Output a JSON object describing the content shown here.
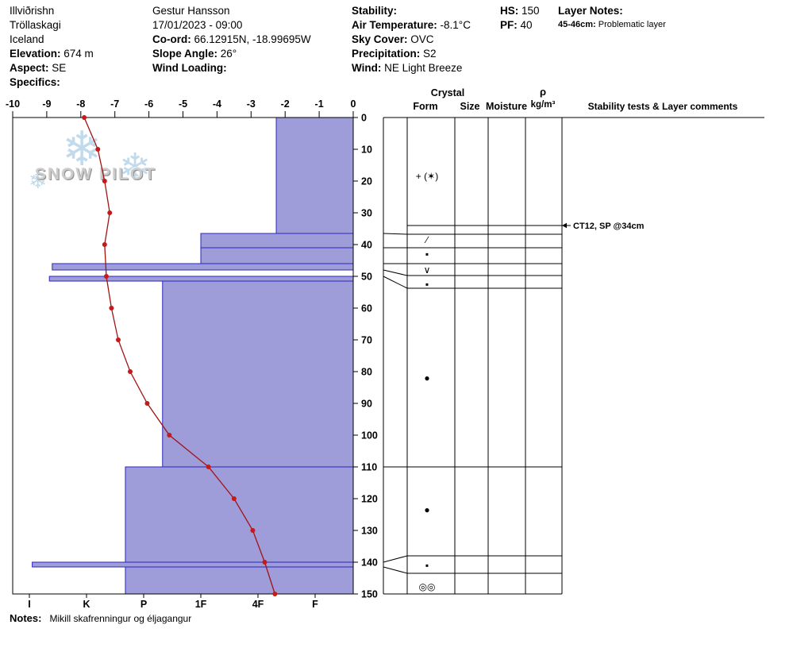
{
  "header": {
    "location": {
      "lines": [
        {
          "text": "Illviðrishn"
        },
        {
          "text": "Tröllaskagi"
        },
        {
          "text": "Iceland"
        },
        {
          "label": "Elevation:",
          "value": "674 m"
        },
        {
          "label": "Aspect:",
          "value": "SE"
        },
        {
          "label": "Specifics:",
          "value": ""
        }
      ]
    },
    "observer": {
      "lines": [
        {
          "text": "Gestur Hansson"
        },
        {
          "text": "17/01/2023 - 09:00"
        },
        {
          "label": "Co-ord:",
          "value": "66.12915N, -18.99695W"
        },
        {
          "label": "Slope Angle:",
          "value": "26°"
        },
        {
          "label": "Wind Loading:",
          "value": ""
        }
      ]
    },
    "conditions": {
      "lines": [
        {
          "label": "Stability:",
          "value": ""
        },
        {
          "label": "Air Temperature:",
          "value": "-8.1°C"
        },
        {
          "label": "Sky Cover:",
          "value": "OVC"
        },
        {
          "label": "Precipitation:",
          "value": "S2"
        },
        {
          "label": "Wind:",
          "value": "NE Light Breeze"
        }
      ]
    },
    "snowpack": {
      "lines": [
        {
          "label": "HS:",
          "value": "150"
        },
        {
          "label": "PF:",
          "value": "40"
        }
      ]
    },
    "layer_notes": {
      "lines": [
        {
          "label": "Layer Notes:",
          "value": ""
        },
        {
          "label": "45-46cm:",
          "value": "Problematic layer",
          "small": true
        }
      ]
    }
  },
  "watermark": {
    "text": "SNOW PILOT",
    "snowflake_glyph": "❄"
  },
  "chart_data": {
    "type": "snow-profile",
    "temperature_axis": {
      "unit": "°C",
      "range": [
        -10,
        0
      ],
      "ticks": [
        -10,
        -9,
        -8,
        -7,
        -6,
        -5,
        -4,
        -3,
        -2,
        -1,
        0
      ]
    },
    "depth_axis": {
      "unit": "cm",
      "range": [
        0,
        150
      ],
      "ticks": [
        0,
        10,
        20,
        30,
        40,
        50,
        60,
        70,
        80,
        90,
        100,
        110,
        120,
        130,
        140,
        150
      ]
    },
    "hardness_axis": {
      "labels": [
        "I",
        "K",
        "P",
        "1F",
        "4F",
        "F"
      ]
    },
    "layers": [
      {
        "top_cm": 0,
        "bottom_cm": 36.5,
        "hardness": "4F-F",
        "h": 4.32
      },
      {
        "top_cm": 36.5,
        "bottom_cm": 41,
        "hardness": "1F",
        "h": 3.0
      },
      {
        "top_cm": 41,
        "bottom_cm": 46,
        "hardness": "1F",
        "h": 3.0
      },
      {
        "top_cm": 46,
        "bottom_cm": 48,
        "hardness": "K",
        "h": 0.4
      },
      {
        "top_cm": 48,
        "bottom_cm": 50,
        "hardness": "F",
        "h": null
      },
      {
        "top_cm": 50,
        "bottom_cm": 51.5,
        "hardness": "K",
        "h": 0.35
      },
      {
        "top_cm": 51.5,
        "bottom_cm": 110,
        "hardness": "P",
        "h": 2.33
      },
      {
        "top_cm": 110,
        "bottom_cm": 140,
        "hardness": "P-",
        "h": 1.68
      },
      {
        "top_cm": 140,
        "bottom_cm": 141.5,
        "hardness": "I",
        "h": 0.05
      },
      {
        "top_cm": 141.5,
        "bottom_cm": 150,
        "hardness": "P-",
        "h": 1.68
      }
    ],
    "temperature_profile": [
      {
        "depth_cm": 0,
        "temp_c": -7.9
      },
      {
        "depth_cm": 10,
        "temp_c": -7.5
      },
      {
        "depth_cm": 20,
        "temp_c": -7.3
      },
      {
        "depth_cm": 30,
        "temp_c": -7.15
      },
      {
        "depth_cm": 40,
        "temp_c": -7.3
      },
      {
        "depth_cm": 50,
        "temp_c": -7.25
      },
      {
        "depth_cm": 60,
        "temp_c": -7.1
      },
      {
        "depth_cm": 70,
        "temp_c": -6.9
      },
      {
        "depth_cm": 80,
        "temp_c": -6.55
      },
      {
        "depth_cm": 90,
        "temp_c": -6.05
      },
      {
        "depth_cm": 100,
        "temp_c": -5.4
      },
      {
        "depth_cm": 110,
        "temp_c": -4.25
      },
      {
        "depth_cm": 120,
        "temp_c": -3.5
      },
      {
        "depth_cm": 130,
        "temp_c": -2.95
      },
      {
        "depth_cm": 140,
        "temp_c": -2.6
      },
      {
        "depth_cm": 150,
        "temp_c": -2.3
      }
    ],
    "colors": {
      "layer_fill": "#9e9dd9",
      "layer_border": "#2a28bc",
      "profile_line": "#a01414",
      "profile_point": "#c41a1a"
    }
  },
  "panel": {
    "headers": {
      "crystal": "Crystal",
      "form": "Form",
      "size": "Size",
      "moisture": "Moisture",
      "density_symbol": "ρ",
      "density_unit": "kg/m³",
      "comments": "Stability tests & Layer comments"
    },
    "boundaries": [
      {
        "chart_cm": 36.5,
        "panel_cm": 36.75
      },
      {
        "chart_cm": 41,
        "panel_cm": 41
      },
      {
        "chart_cm": 46,
        "panel_cm": 46
      },
      {
        "chart_cm": 48,
        "panel_cm": 49.75
      },
      {
        "chart_cm": 50,
        "panel_cm": 53.75
      },
      {
        "chart_cm": 110,
        "panel_cm": 110
      },
      {
        "chart_cm": 140,
        "panel_cm": 138
      },
      {
        "chart_cm": 141.5,
        "panel_cm": 143.5
      }
    ],
    "forms": [
      {
        "depth_cm": 18.5,
        "symbol": "+ (✶)",
        "name": "precipitation-particles"
      },
      {
        "depth_cm": 38.5,
        "symbol": "∕",
        "name": "decomposing-fragments"
      },
      {
        "depth_cm": 43,
        "symbol": "▪",
        "name": "ice-crust"
      },
      {
        "depth_cm": 48,
        "symbol": "∨",
        "name": "surface-hoar"
      },
      {
        "depth_cm": 52.5,
        "symbol": "▪",
        "name": "ice-crust"
      },
      {
        "depth_cm": 82,
        "symbol": "●",
        "name": "rounded-grains"
      },
      {
        "depth_cm": 123.5,
        "symbol": "●",
        "name": "rounded-grains"
      },
      {
        "depth_cm": 141,
        "symbol": "▪",
        "name": "ice-crust"
      },
      {
        "depth_cm": 147.8,
        "symbol": "◎◎",
        "name": "melt-forms"
      }
    ],
    "test": {
      "depth_cm": 34,
      "text": "CT12, SP @34cm"
    }
  },
  "notes": {
    "label": "Notes:",
    "text": "Mikill skafrenningur og éljagangur"
  }
}
